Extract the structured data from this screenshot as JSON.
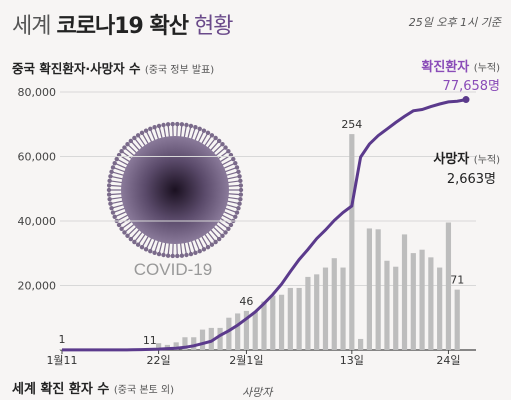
{
  "header": {
    "title_part1": "세계",
    "title_part2": "코로나19 확산",
    "title_part3": "현황",
    "date_note": "25일 오후 1시 기준"
  },
  "subtitle": {
    "label": "중국 확진환자·사망자 수",
    "note": "(중국 정부 발표)"
  },
  "virus_label": "COVID-19",
  "bottom": {
    "label": "세계 확진 환자 수",
    "note": "(중국 본토 외)",
    "legend": "사망자"
  },
  "colors": {
    "line": "#5b3a8c",
    "bar": "#bdbdbd",
    "virus": "#7a6a8a",
    "label": "#8a4cb8"
  },
  "chart_data": {
    "type": "line",
    "ylim": [
      0,
      80000
    ],
    "yticks": [
      20000,
      40000,
      60000,
      80000
    ],
    "ytick_labels": [
      "20,000",
      "40,000",
      "60,000",
      "80,000"
    ],
    "x_tick_labels": [
      "1월11",
      "22일",
      "2월1일",
      "13일",
      "24일"
    ],
    "x_tick_days": [
      1,
      12,
      22,
      34,
      45
    ],
    "series": [
      {
        "name": "확진환자",
        "name_note": "(누적)",
        "type": "line",
        "end_label": "77,658명",
        "values": [
          [
            1,
            41
          ],
          [
            2,
            41
          ],
          [
            3,
            41
          ],
          [
            4,
            41
          ],
          [
            5,
            41
          ],
          [
            6,
            41
          ],
          [
            7,
            41
          ],
          [
            8,
            45
          ],
          [
            9,
            62
          ],
          [
            10,
            121
          ],
          [
            11,
            198
          ],
          [
            12,
            291
          ],
          [
            13,
            440
          ],
          [
            14,
            571
          ],
          [
            15,
            830
          ],
          [
            16,
            1287
          ],
          [
            17,
            1975
          ],
          [
            18,
            2744
          ],
          [
            19,
            4515
          ],
          [
            20,
            5974
          ],
          [
            21,
            7711
          ],
          [
            22,
            9692
          ],
          [
            23,
            11791
          ],
          [
            24,
            14380
          ],
          [
            25,
            17205
          ],
          [
            26,
            20438
          ],
          [
            27,
            24324
          ],
          [
            28,
            28018
          ],
          [
            29,
            31161
          ],
          [
            30,
            34546
          ],
          [
            31,
            37198
          ],
          [
            32,
            40171
          ],
          [
            33,
            42638
          ],
          [
            34,
            44653
          ],
          [
            35,
            59804
          ],
          [
            36,
            63851
          ],
          [
            37,
            66492
          ],
          [
            38,
            68500
          ],
          [
            39,
            70548
          ],
          [
            40,
            72436
          ],
          [
            41,
            74185
          ],
          [
            42,
            74576
          ],
          [
            43,
            75465
          ],
          [
            44,
            76288
          ],
          [
            45,
            76936
          ],
          [
            46,
            77150
          ],
          [
            47,
            77658
          ]
        ]
      },
      {
        "name": "사망자",
        "name_note": "(누적)",
        "type": "bar",
        "end_label": "2,663명",
        "values": [
          [
            1,
            1
          ],
          [
            2,
            1
          ],
          [
            3,
            1
          ],
          [
            4,
            1
          ],
          [
            5,
            1
          ],
          [
            6,
            1
          ],
          [
            7,
            2
          ],
          [
            8,
            2
          ],
          [
            9,
            3
          ],
          [
            10,
            3
          ],
          [
            11,
            3
          ],
          [
            12,
            11
          ],
          [
            13,
            17
          ],
          [
            14,
            26
          ],
          [
            15,
            41
          ],
          [
            16,
            56
          ],
          [
            17,
            80
          ],
          [
            18,
            106
          ],
          [
            19,
            132
          ],
          [
            20,
            170
          ],
          [
            21,
            213
          ],
          [
            22,
            259
          ],
          [
            23,
            304
          ],
          [
            24,
            361
          ],
          [
            25,
            425
          ],
          [
            26,
            490
          ],
          [
            27,
            563
          ],
          [
            28,
            636
          ],
          [
            29,
            722
          ],
          [
            30,
            811
          ],
          [
            31,
            908
          ],
          [
            32,
            1016
          ],
          [
            33,
            1113
          ],
          [
            34,
            1367
          ],
          [
            35,
            1380
          ],
          [
            36,
            1523
          ],
          [
            37,
            1665
          ],
          [
            38,
            1770
          ],
          [
            39,
            1868
          ],
          [
            40,
            2004
          ],
          [
            41,
            2118
          ],
          [
            42,
            2236
          ],
          [
            43,
            2345
          ],
          [
            44,
            2442
          ],
          [
            45,
            2592
          ],
          [
            46,
            2663
          ]
        ]
      }
    ],
    "bar_labels": [
      {
        "day": 1,
        "text": "1"
      },
      {
        "day": 11,
        "text": "11"
      },
      {
        "day": 22,
        "text": "46"
      },
      {
        "day": 34,
        "text": "254"
      },
      {
        "day": 46,
        "text": "71"
      }
    ],
    "bar_daily": [
      [
        1,
        1
      ],
      [
        2,
        0
      ],
      [
        3,
        0
      ],
      [
        4,
        0
      ],
      [
        5,
        0
      ],
      [
        6,
        0
      ],
      [
        7,
        1
      ],
      [
        8,
        0
      ],
      [
        9,
        1
      ],
      [
        10,
        0
      ],
      [
        11,
        0
      ],
      [
        12,
        8
      ],
      [
        13,
        6
      ],
      [
        14,
        9
      ],
      [
        15,
        15
      ],
      [
        16,
        15
      ],
      [
        17,
        24
      ],
      [
        18,
        26
      ],
      [
        19,
        26
      ],
      [
        20,
        38
      ],
      [
        21,
        43
      ],
      [
        22,
        46
      ],
      [
        23,
        45
      ],
      [
        24,
        57
      ],
      [
        25,
        64
      ],
      [
        26,
        65
      ],
      [
        27,
        73
      ],
      [
        28,
        73
      ],
      [
        29,
        86
      ],
      [
        30,
        89
      ],
      [
        31,
        97
      ],
      [
        32,
        108
      ],
      [
        33,
        97
      ],
      [
        34,
        254
      ],
      [
        35,
        13
      ],
      [
        36,
        143
      ],
      [
        37,
        142
      ],
      [
        38,
        105
      ],
      [
        39,
        98
      ],
      [
        40,
        136
      ],
      [
        41,
        114
      ],
      [
        42,
        118
      ],
      [
        43,
        109
      ],
      [
        44,
        97
      ],
      [
        45,
        150
      ],
      [
        46,
        71
      ]
    ]
  }
}
